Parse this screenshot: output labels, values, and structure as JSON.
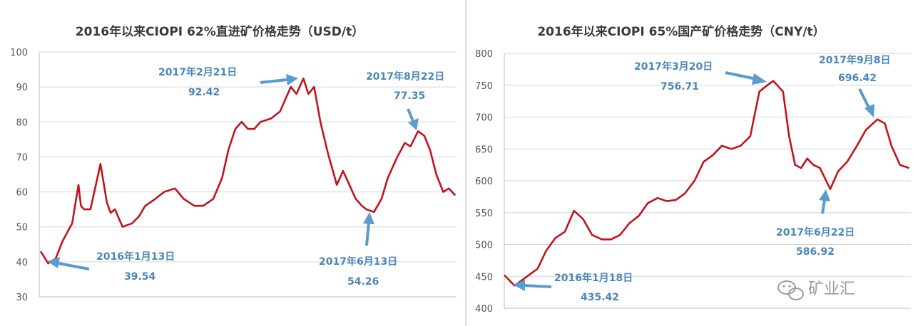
{
  "chart_data": [
    {
      "type": "line",
      "title": "2016年以来CIOPI 62%直进矿价格走势（USD/t）",
      "ylim": [
        30,
        100
      ],
      "yticks": [
        30,
        40,
        50,
        60,
        70,
        80,
        90,
        100
      ],
      "grid": true,
      "series": [
        {
          "x": [
            "2016-01-01",
            "2016-01-13",
            "2016-01-25",
            "2016-02-05",
            "2016-02-20",
            "2016-03-01",
            "2016-03-05",
            "2016-03-10",
            "2016-03-20",
            "2016-04-05",
            "2016-04-15",
            "2016-04-21",
            "2016-04-28",
            "2016-05-10",
            "2016-05-25",
            "2016-06-05",
            "2016-06-15",
            "2016-07-01",
            "2016-07-15",
            "2016-08-01",
            "2016-08-15",
            "2016-09-01",
            "2016-09-15",
            "2016-10-01",
            "2016-10-15",
            "2016-10-25",
            "2016-11-05",
            "2016-11-15",
            "2016-11-25",
            "2016-12-05",
            "2016-12-15",
            "2017-01-01",
            "2017-01-15",
            "2017-02-01",
            "2017-02-10",
            "2017-02-21",
            "2017-03-01",
            "2017-03-10",
            "2017-03-20",
            "2017-04-01",
            "2017-04-15",
            "2017-04-25",
            "2017-05-05",
            "2017-05-15",
            "2017-05-25",
            "2017-06-01",
            "2017-06-13",
            "2017-06-25",
            "2017-07-05",
            "2017-07-20",
            "2017-08-01",
            "2017-08-10",
            "2017-08-22",
            "2017-09-01",
            "2017-09-10",
            "2017-09-20",
            "2017-10-01",
            "2017-10-10",
            "2017-10-20"
          ],
          "values": [
            43,
            39.54,
            41,
            46,
            51,
            62,
            56,
            55,
            55,
            68,
            57,
            54,
            55,
            50,
            51,
            53,
            56,
            58,
            60,
            61,
            58,
            56,
            56,
            58,
            64,
            72,
            78,
            80,
            78,
            78,
            80,
            81,
            83,
            90,
            88,
            92.42,
            88,
            90,
            80,
            71,
            62,
            66,
            62,
            58,
            56,
            55,
            54.26,
            58,
            64,
            70,
            74,
            73,
            77.35,
            76,
            72,
            65,
            60,
            61,
            59
          ]
        }
      ],
      "annotations": [
        {
          "date": "2016年1月13日",
          "value": "39.54",
          "x": "2016-01-13",
          "y": 39.54
        },
        {
          "date": "2017年2月21日",
          "value": "92.42",
          "x": "2017-02-21",
          "y": 92.42
        },
        {
          "date": "2017年6月13日",
          "value": "54.26",
          "x": "2017-06-13",
          "y": 54.26
        },
        {
          "date": "2017年8月22日",
          "value": "77.35",
          "x": "2017-08-22",
          "y": 77.35
        }
      ]
    },
    {
      "type": "line",
      "title": "2016年以来CIOPI 65%国产矿价格走势（CNY/t）",
      "ylim": [
        400,
        800
      ],
      "yticks": [
        400,
        450,
        500,
        550,
        600,
        650,
        700,
        750,
        800
      ],
      "grid": true,
      "series": [
        {
          "x": [
            "2016-01-01",
            "2016-01-18",
            "2016-02-05",
            "2016-02-25",
            "2016-03-10",
            "2016-03-25",
            "2016-04-10",
            "2016-04-25",
            "2016-05-10",
            "2016-05-25",
            "2016-06-10",
            "2016-06-25",
            "2016-07-10",
            "2016-07-25",
            "2016-08-10",
            "2016-08-25",
            "2016-09-10",
            "2016-09-25",
            "2016-10-10",
            "2016-10-25",
            "2016-11-10",
            "2016-11-25",
            "2016-12-10",
            "2016-12-25",
            "2017-01-10",
            "2017-01-25",
            "2017-02-10",
            "2017-02-25",
            "2017-03-10",
            "2017-03-20",
            "2017-04-05",
            "2017-04-15",
            "2017-04-25",
            "2017-05-05",
            "2017-05-15",
            "2017-05-25",
            "2017-06-05",
            "2017-06-22",
            "2017-07-05",
            "2017-07-20",
            "2017-08-05",
            "2017-08-20",
            "2017-09-08",
            "2017-09-20",
            "2017-10-01",
            "2017-10-15",
            "2017-10-30"
          ],
          "values": [
            452,
            435.42,
            448,
            462,
            490,
            510,
            520,
            553,
            540,
            515,
            508,
            508,
            515,
            533,
            545,
            565,
            573,
            568,
            570,
            580,
            600,
            630,
            640,
            655,
            650,
            655,
            670,
            740,
            750,
            756.71,
            740,
            670,
            625,
            620,
            635,
            625,
            620,
            586.92,
            615,
            630,
            655,
            680,
            696.42,
            690,
            655,
            625,
            620
          ]
        }
      ],
      "annotations": [
        {
          "date": "2016年1月18日",
          "value": "435.42",
          "x": "2016-01-18",
          "y": 435.42
        },
        {
          "date": "2017年3月20日",
          "value": "756.71",
          "x": "2017-03-20",
          "y": 756.71
        },
        {
          "date": "2017年6月22日",
          "value": "586.92",
          "x": "2017-06-22",
          "y": 586.92
        },
        {
          "date": "2017年9月8日",
          "value": "696.42",
          "x": "2017-09-08",
          "y": 696.42
        }
      ]
    }
  ],
  "watermark": "矿业汇",
  "colors": {
    "line": "#c0141c",
    "annotation": "#4a86b8",
    "arrow": "#5b9bd0"
  }
}
